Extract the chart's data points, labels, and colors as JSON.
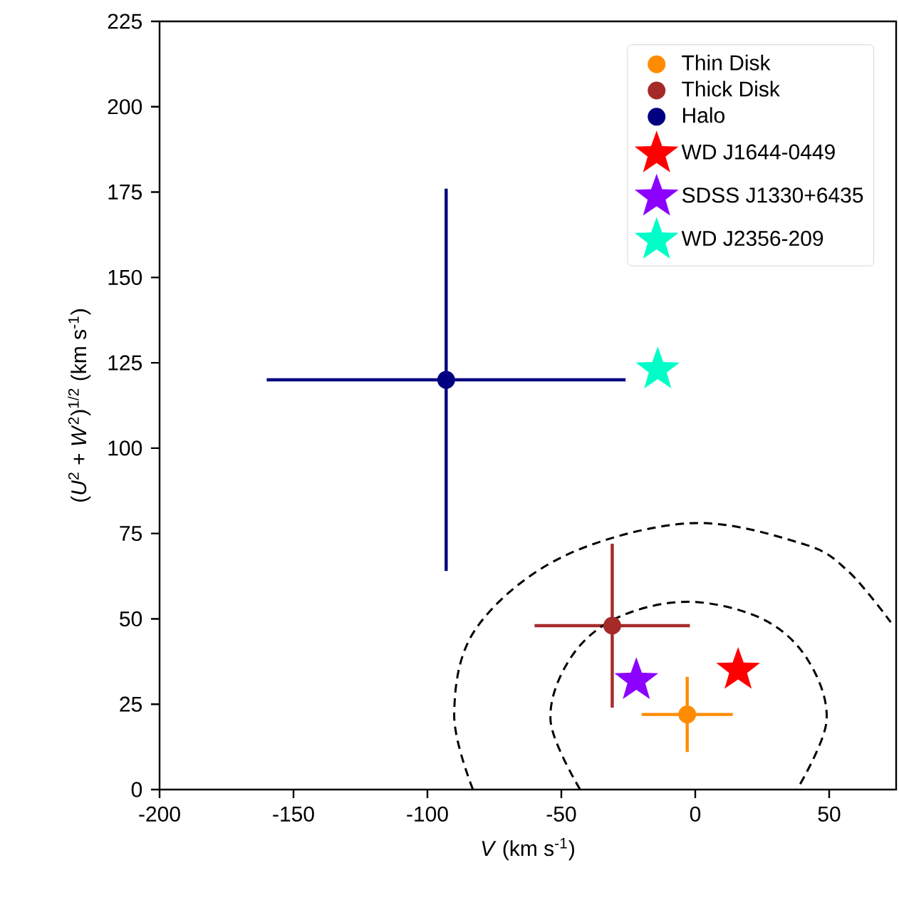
{
  "chart_data": {
    "type": "scatter",
    "xlabel": "*V* (km s$^{-1}$)",
    "ylabel": "(*U*$^{2}$ + *W*$^{2}$)$^{1/2}$ (km s$^{-1}$)",
    "xlim": [
      -200,
      75
    ],
    "ylim": [
      0,
      225
    ],
    "xticks": [
      -200,
      -150,
      -100,
      -50,
      0,
      50
    ],
    "yticks": [
      0,
      25,
      50,
      75,
      100,
      125,
      150,
      175,
      200,
      225
    ],
    "legend": "top right",
    "series": [
      {
        "name": "Thin Disk",
        "marker": "circle",
        "color": "#ff8c00",
        "x": [
          -3
        ],
        "values": [
          22
        ],
        "errors": [
          11
        ],
        "xerrors": [
          17
        ]
      },
      {
        "name": "Thick Disk",
        "marker": "circle",
        "color": "#a52a2a",
        "x": [
          -31
        ],
        "values": [
          48
        ],
        "errors": [
          24
        ],
        "xerrors": [
          29
        ]
      },
      {
        "name": "Halo",
        "marker": "circle",
        "color": "#000080",
        "x": [
          -93
        ],
        "values": [
          120
        ],
        "errors": [
          56
        ],
        "xerrors": [
          67
        ]
      },
      {
        "name": "WD J1644-0449",
        "marker": "star",
        "color": "#ff0000",
        "x": [
          16
        ],
        "values": [
          35
        ]
      },
      {
        "name": "SDSS J1330+6435",
        "marker": "star",
        "color": "#8b00ff",
        "x": [
          -22
        ],
        "values": [
          32
        ]
      },
      {
        "name": "WD J2356-209",
        "marker": "star",
        "color": "#00ffc8",
        "x": [
          -14
        ],
        "values": [
          123
        ]
      },
      {
        "type": "line",
        "line_style": "dashed",
        "marker": "none",
        "color": "#000000",
        "x": [
          -43,
          -54,
          -47,
          -30,
          -3,
          25,
          42,
          49,
          38
        ],
        "values": [
          0,
          20,
          38,
          50,
          55,
          50,
          38,
          20,
          0
        ]
      },
      {
        "type": "line",
        "line_style": "dashed",
        "marker": "none",
        "color": "#000000",
        "x": [
          -83,
          -90,
          -82,
          -50,
          -2,
          40,
          57,
          73
        ],
        "values": [
          0,
          22,
          47,
          68,
          78,
          72,
          64,
          49
        ]
      }
    ]
  }
}
